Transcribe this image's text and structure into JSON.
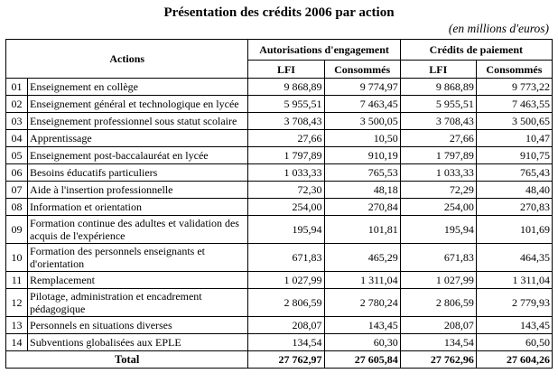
{
  "page": {
    "title": "Présentation des crédits 2006 par action",
    "subtitle": "(en millions d'euros)"
  },
  "table": {
    "headers": {
      "actions": "Actions",
      "group_ae": "Autorisations d'engagement",
      "group_cp": "Crédits de paiement",
      "ae_lfi": "LFI",
      "ae_consommes": "Consommés",
      "cp_lfi": "LFI",
      "cp_consommes": "Consommés"
    },
    "rows": [
      {
        "num": "01",
        "label": "Enseignement en collège",
        "ae_lfi": "9 868,89",
        "ae_cons": "9 774,97",
        "cp_lfi": "9 868,89",
        "cp_cons": "9 773,22"
      },
      {
        "num": "02",
        "label": "Enseignement général et technologique en lycée",
        "ae_lfi": "5 955,51",
        "ae_cons": "7 463,45",
        "cp_lfi": "5 955,51",
        "cp_cons": "7 463,55"
      },
      {
        "num": "03",
        "label": "Enseignement professionnel sous statut scolaire",
        "ae_lfi": "3 708,43",
        "ae_cons": "3 500,05",
        "cp_lfi": "3 708,43",
        "cp_cons": "3 500,65"
      },
      {
        "num": "04",
        "label": "Apprentissage",
        "ae_lfi": "27,66",
        "ae_cons": "10,50",
        "cp_lfi": "27,66",
        "cp_cons": "10,47"
      },
      {
        "num": "05",
        "label": "Enseignement post-baccalauréat en lycée",
        "ae_lfi": "1 797,89",
        "ae_cons": "910,19",
        "cp_lfi": "1 797,89",
        "cp_cons": "910,75"
      },
      {
        "num": "06",
        "label": "Besoins éducatifs particuliers",
        "ae_lfi": "1 033,33",
        "ae_cons": "765,53",
        "cp_lfi": "1 033,33",
        "cp_cons": "765,43"
      },
      {
        "num": "07",
        "label": "Aide à l'insertion professionnelle",
        "ae_lfi": "72,30",
        "ae_cons": "48,18",
        "cp_lfi": "72,29",
        "cp_cons": "48,40"
      },
      {
        "num": "08",
        "label": "Information et orientation",
        "ae_lfi": "254,00",
        "ae_cons": "270,84",
        "cp_lfi": "254,00",
        "cp_cons": "270,83"
      },
      {
        "num": "09",
        "label": "Formation continue des adultes et validation des acquis de l'expérience",
        "ae_lfi": "195,94",
        "ae_cons": "101,81",
        "cp_lfi": "195,94",
        "cp_cons": "101,69"
      },
      {
        "num": "10",
        "label": "Formation des personnels enseignants et d'orientation",
        "ae_lfi": "671,83",
        "ae_cons": "465,29",
        "cp_lfi": "671,83",
        "cp_cons": "464,35"
      },
      {
        "num": "11",
        "label": "Remplacement",
        "ae_lfi": "1 027,99",
        "ae_cons": "1 311,04",
        "cp_lfi": "1 027,99",
        "cp_cons": "1 311,04"
      },
      {
        "num": "12",
        "label": "Pilotage, administration et encadrement pédagogique",
        "ae_lfi": "2 806,59",
        "ae_cons": "2 780,24",
        "cp_lfi": "2 806,59",
        "cp_cons": "2 779,93"
      },
      {
        "num": "13",
        "label": "Personnels en situations diverses",
        "ae_lfi": "208,07",
        "ae_cons": "143,45",
        "cp_lfi": "208,07",
        "cp_cons": "143,45"
      },
      {
        "num": "14",
        "label": "Subventions globalisées aux EPLE",
        "ae_lfi": "134,54",
        "ae_cons": "60,30",
        "cp_lfi": "134,54",
        "cp_cons": "60,50"
      }
    ],
    "total": {
      "label": "Total",
      "ae_lfi": "27 762,97",
      "ae_cons": "27 605,84",
      "cp_lfi": "27 762,96",
      "cp_cons": "27 604,26"
    }
  }
}
